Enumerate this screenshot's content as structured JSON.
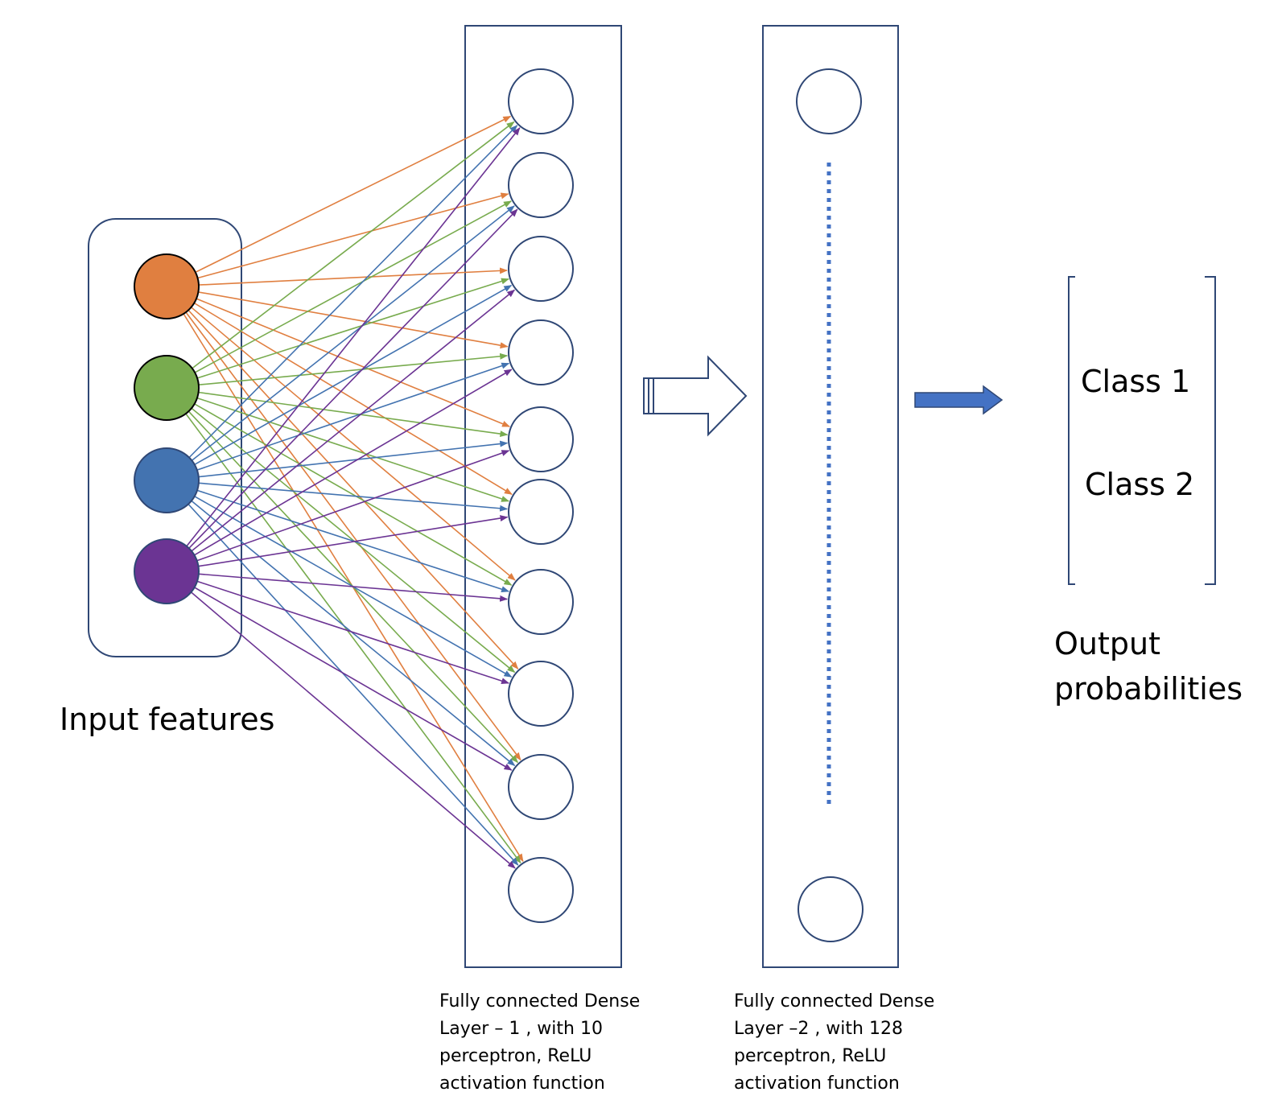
{
  "input": {
    "label": "Input features",
    "feature_colors": [
      "#e07f40",
      "#78ab4e",
      "#4373b0",
      "#6b3493"
    ]
  },
  "layer1": {
    "caption": [
      "Fully connected Dense",
      "Layer – 1 , with 10",
      "perceptron, ReLU",
      "activation function"
    ],
    "neuron_count": 10
  },
  "layer2": {
    "caption": [
      "Fully connected Dense",
      "Layer –2 , with 128",
      "perceptron, ReLU",
      "activation function"
    ]
  },
  "output": {
    "classes": [
      "Class 1",
      "Class 2"
    ],
    "label": [
      "Output",
      "probabilities"
    ]
  },
  "colors": {
    "frame": "#2f4775",
    "arrow_fill": "#4472c4",
    "dotted": "#4472c4"
  }
}
